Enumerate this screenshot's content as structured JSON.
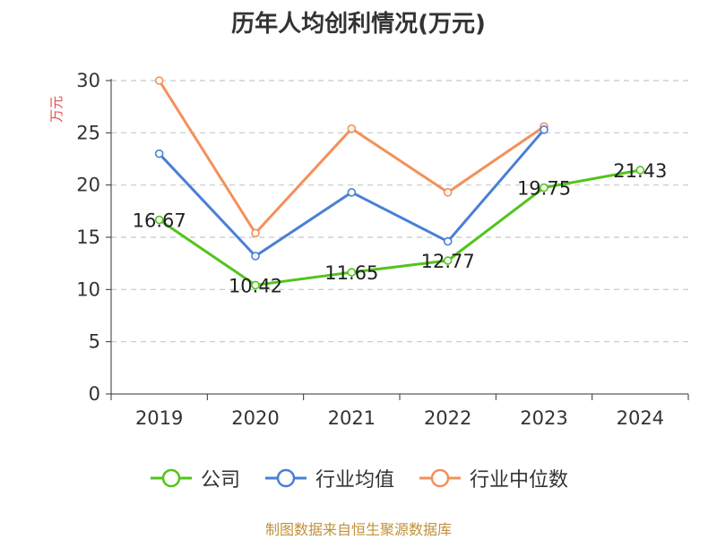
{
  "chart_data": {
    "type": "line",
    "title": "历年人均创利情况(万元)",
    "ylabel": "万元",
    "categories": [
      "2019",
      "2020",
      "2021",
      "2022",
      "2023",
      "2024"
    ],
    "ylim": [
      0,
      30
    ],
    "yticks": [
      0,
      5,
      10,
      15,
      20,
      25,
      30
    ],
    "grid": true,
    "legend_position": "bottom",
    "series": [
      {
        "name": "公司",
        "color": "#52c41a",
        "values": [
          16.67,
          10.42,
          11.65,
          12.77,
          19.75,
          21.43
        ],
        "labels": [
          "16.67",
          "10.42",
          "11.65",
          "12.77",
          "19.75",
          "21.43"
        ]
      },
      {
        "name": "行业均值",
        "color": "#4a7fd6",
        "values": [
          23.0,
          13.2,
          19.3,
          14.6,
          25.3,
          null
        ]
      },
      {
        "name": "行业中位数",
        "color": "#f4905a",
        "values": [
          30.0,
          15.4,
          25.4,
          19.3,
          25.6,
          null
        ]
      }
    ]
  },
  "footer": {
    "source": "制图数据来自恒生聚源数据库"
  }
}
